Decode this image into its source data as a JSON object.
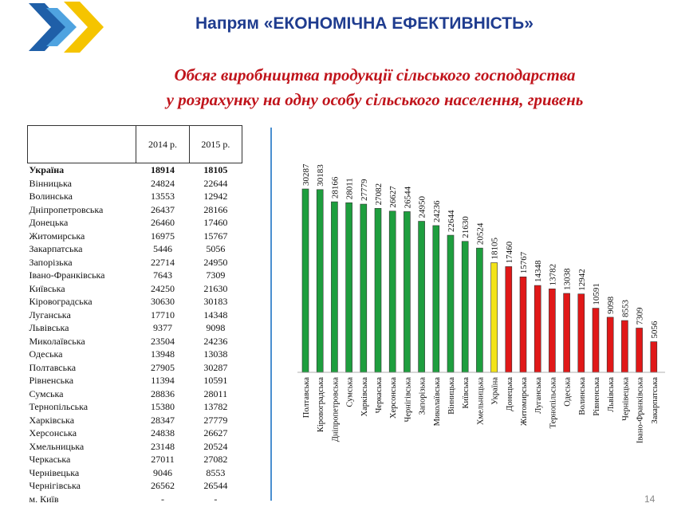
{
  "header": {
    "title": "Напрям «ЕКОНОМІЧНА ЕФЕКТИВНІСТЬ»",
    "subtitle_line1": "Обсяг виробництва продукції сільського господарства",
    "subtitle_line2": "у розрахунку на одну особу сільського населення, гривень"
  },
  "table": {
    "columns": [
      "",
      "2014 р.",
      "2015 р."
    ],
    "rows": [
      [
        "Україна",
        "18914",
        "18105"
      ],
      [
        "Вінницька",
        "24824",
        "22644"
      ],
      [
        "Волинська",
        "13553",
        "12942"
      ],
      [
        "Дніпропетровська",
        "26437",
        "28166"
      ],
      [
        "Донецька",
        "26460",
        "17460"
      ],
      [
        "Житомирська",
        "16975",
        "15767"
      ],
      [
        "Закарпатська",
        "5446",
        "5056"
      ],
      [
        "Запорізька",
        "22714",
        "24950"
      ],
      [
        "Івано-Франківська",
        "7643",
        "7309"
      ],
      [
        "Київська",
        "24250",
        "21630"
      ],
      [
        "Кіровоградська",
        "30630",
        "30183"
      ],
      [
        "Луганська",
        "17710",
        "14348"
      ],
      [
        "Львівська",
        "9377",
        "9098"
      ],
      [
        "Миколаївська",
        "23504",
        "24236"
      ],
      [
        "Одеська",
        "13948",
        "13038"
      ],
      [
        "Полтавська",
        "27905",
        "30287"
      ],
      [
        "Рівненська",
        "11394",
        "10591"
      ],
      [
        "Сумська",
        "28836",
        "28011"
      ],
      [
        "Тернопільська",
        "15380",
        "13782"
      ],
      [
        "Харківська",
        "28347",
        "27779"
      ],
      [
        "Херсонська",
        "24838",
        "26627"
      ],
      [
        "Хмельницька",
        "23148",
        "20524"
      ],
      [
        "Черкаська",
        "27011",
        "27082"
      ],
      [
        "Чернівецька",
        "9046",
        "8553"
      ],
      [
        "Чернігівська",
        "26562",
        "26544"
      ],
      [
        "м. Київ",
        "-",
        "-"
      ]
    ]
  },
  "chart_data": {
    "type": "bar",
    "categories": [
      "Полтавська",
      "Кіровоградська",
      "Дніпропетровська",
      "Сумська",
      "Харківська",
      "Черкаська",
      "Херсонська",
      "Чернігівська",
      "Запорізька",
      "Миколаївська",
      "Вінницька",
      "Київська",
      "Хмельницька",
      "Україна",
      "Донецька",
      "Житомирська",
      "Луганська",
      "Тернопільська",
      "Одеська",
      "Волинська",
      "Рівненська",
      "Львівська",
      "Чернівецька",
      "Івано-Франківська",
      "Закарпатська"
    ],
    "values": [
      30287,
      30183,
      28166,
      28011,
      27779,
      27082,
      26627,
      26544,
      24950,
      24236,
      22644,
      21630,
      20524,
      18105,
      17460,
      15767,
      14348,
      13782,
      13038,
      12942,
      10591,
      9098,
      8553,
      7309,
      5056
    ],
    "value_labels": [
      "30287",
      "30183",
      "28166",
      "28011",
      "27779",
      "27082",
      "26627",
      "26544",
      "24950",
      "24236",
      "22644",
      "21630",
      "20524",
      "18105",
      "17460",
      "15767",
      "14348",
      "13782",
      "13038",
      "12942",
      "10591",
      "9098",
      "8553",
      "7309",
      "5056"
    ],
    "bar_colors": [
      "#1e9e3e",
      "#1e9e3e",
      "#1e9e3e",
      "#1e9e3e",
      "#1e9e3e",
      "#1e9e3e",
      "#1e9e3e",
      "#1e9e3e",
      "#1e9e3e",
      "#1e9e3e",
      "#1e9e3e",
      "#1e9e3e",
      "#1e9e3e",
      "#f2e318",
      "#e01818",
      "#e01818",
      "#e01818",
      "#e01818",
      "#e01818",
      "#e01818",
      "#e01818",
      "#e01818",
      "#e01818",
      "#e01818",
      "#e01818"
    ],
    "ylim": [
      0,
      30287
    ],
    "grid": false,
    "legend": "none"
  },
  "colors": {
    "heading": "#1f3c8f",
    "subtitle": "#c0141b",
    "above_average": "#1e9e3e",
    "average": "#f2e318",
    "below_average": "#e01818",
    "divider": "#4a8fd0"
  },
  "footer": {
    "page_number": "14"
  }
}
